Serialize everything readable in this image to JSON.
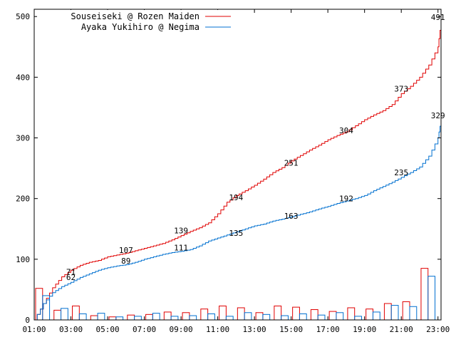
{
  "chart_data": {
    "type": "line",
    "title": "",
    "xlabel": "",
    "ylabel": "",
    "ylim": [
      0,
      512
    ],
    "yticks": [
      0,
      100,
      200,
      300,
      400,
      500
    ],
    "xlim": [
      "01:00",
      "23:10"
    ],
    "xticks": [
      "01:00",
      "03:00",
      "05:00",
      "07:00",
      "09:00",
      "11:00",
      "13:00",
      "15:00",
      "17:00",
      "19:00",
      "21:00",
      "23:00"
    ],
    "grid": false,
    "legend_position": "top-left",
    "series": [
      {
        "name": "Souseiseki @ Rozen Maiden",
        "color": "#e00000",
        "cumulative": {
          "x": [
            "01:00",
            "01:30",
            "02:00",
            "02:30",
            "03:00",
            "03:30",
            "04:00",
            "04:30",
            "05:00",
            "05:30",
            "06:00",
            "06:30",
            "07:00",
            "07:30",
            "08:00",
            "08:30",
            "09:00",
            "09:30",
            "10:00",
            "10:30",
            "11:00",
            "11:30",
            "12:00",
            "12:30",
            "13:00",
            "13:30",
            "14:00",
            "14:30",
            "15:00",
            "15:30",
            "16:00",
            "16:30",
            "17:00",
            "17:30",
            "18:00",
            "18:30",
            "19:00",
            "19:30",
            "20:00",
            "20:30",
            "21:00",
            "21:30",
            "22:00",
            "22:30",
            "23:00",
            "23:10"
          ],
          "y": [
            0,
            27,
            53,
            71,
            82,
            90,
            95,
            98,
            104,
            107,
            110,
            114,
            118,
            122,
            126,
            132,
            139,
            146,
            152,
            160,
            175,
            194,
            205,
            213,
            222,
            232,
            243,
            251,
            262,
            271,
            280,
            288,
            297,
            304,
            310,
            320,
            330,
            338,
            345,
            355,
            373,
            385,
            400,
            420,
            450,
            491
          ]
        },
        "labels": [
          {
            "x": "03:00",
            "y": 71,
            "text": "71"
          },
          {
            "x": "06:00",
            "y": 107,
            "text": "107"
          },
          {
            "x": "09:00",
            "y": 139,
            "text": "139"
          },
          {
            "x": "12:00",
            "y": 194,
            "text": "194"
          },
          {
            "x": "15:00",
            "y": 251,
            "text": "251"
          },
          {
            "x": "18:00",
            "y": 304,
            "text": "304"
          },
          {
            "x": "21:00",
            "y": 373,
            "text": "373"
          },
          {
            "x": "23:00",
            "y": 491,
            "text": "491"
          }
        ],
        "hourly": [
          52,
          16,
          23,
          7,
          5,
          8,
          9,
          13,
          12,
          18,
          23,
          20,
          12,
          23,
          21,
          17,
          14,
          20,
          18,
          27,
          30,
          85
        ]
      },
      {
        "name": "Ayaka Yukihiro @ Negima",
        "color": "#0070d0",
        "cumulative": {
          "x": [
            "01:00",
            "01:30",
            "02:00",
            "02:30",
            "03:00",
            "03:30",
            "04:00",
            "04:30",
            "05:00",
            "05:30",
            "06:00",
            "06:30",
            "07:00",
            "07:30",
            "08:00",
            "08:30",
            "09:00",
            "09:30",
            "10:00",
            "10:30",
            "11:00",
            "11:30",
            "12:00",
            "12:30",
            "13:00",
            "13:30",
            "14:00",
            "14:30",
            "15:00",
            "15:30",
            "16:00",
            "16:30",
            "17:00",
            "17:30",
            "18:00",
            "18:30",
            "19:00",
            "19:30",
            "20:00",
            "20:30",
            "21:00",
            "21:30",
            "22:00",
            "22:30",
            "23:00",
            "23:10"
          ],
          "y": [
            0,
            27,
            45,
            55,
            62,
            70,
            76,
            82,
            86,
            89,
            91,
            95,
            100,
            104,
            108,
            111,
            113,
            116,
            122,
            130,
            135,
            140,
            145,
            150,
            155,
            158,
            163,
            166,
            170,
            174,
            178,
            183,
            187,
            192,
            196,
            200,
            205,
            213,
            220,
            227,
            235,
            243,
            252,
            270,
            300,
            329
          ]
        },
        "labels": [
          {
            "x": "03:00",
            "y": 62,
            "text": "62"
          },
          {
            "x": "06:00",
            "y": 89,
            "text": "89"
          },
          {
            "x": "09:00",
            "y": 111,
            "text": "111"
          },
          {
            "x": "12:00",
            "y": 135,
            "text": "135"
          },
          {
            "x": "15:00",
            "y": 163,
            "text": "163"
          },
          {
            "x": "18:00",
            "y": 192,
            "text": "192"
          },
          {
            "x": "21:00",
            "y": 235,
            "text": "235"
          },
          {
            "x": "23:00",
            "y": 329,
            "text": "329"
          }
        ],
        "hourly": [
          40,
          19,
          10,
          11,
          5,
          6,
          11,
          6,
          7,
          10,
          6,
          12,
          9,
          7,
          10,
          8,
          12,
          6,
          13,
          24,
          22,
          72
        ]
      }
    ]
  }
}
